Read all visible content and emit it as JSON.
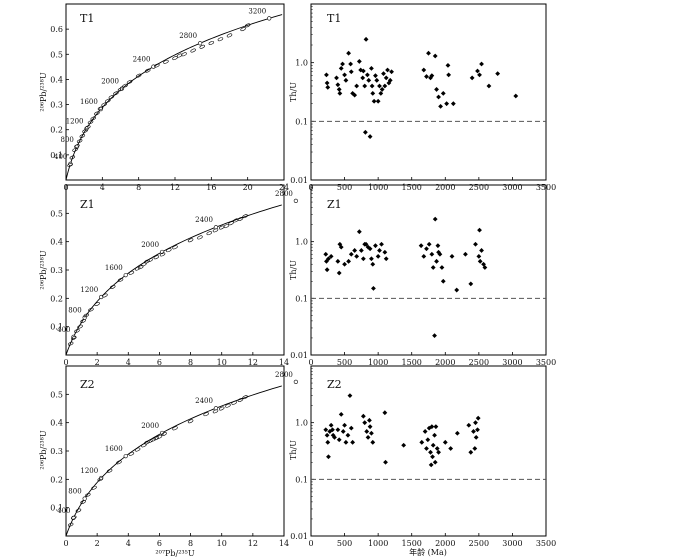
{
  "figure": {
    "concordia_xlabel": "²⁰⁷Pb/²³⁵U",
    "concordia_ylabel": "²⁰⁶Pb/²³⁸U",
    "thu_xlabel": "年龄 (Ma)",
    "thu_ylabel": "Th/U"
  },
  "chart_data": [
    {
      "type": "scatter",
      "role": "concordia",
      "panel_label": "T1",
      "xlim": [
        0,
        24
      ],
      "ylim": [
        0,
        0.7
      ],
      "xticks": [
        0,
        4,
        8,
        12,
        16,
        20,
        24
      ],
      "yticks": [
        0.1,
        0.2,
        0.3,
        0.4,
        0.5,
        0.6
      ],
      "age_labels": [
        "400",
        "800",
        "1200",
        "1600",
        "2000",
        "2400",
        "2800",
        "3200"
      ],
      "age_values": [
        400,
        800,
        1200,
        1600,
        2000,
        2400,
        2800,
        3200
      ],
      "ellipses": [
        [
          0.45,
          0.06
        ],
        [
          0.7,
          0.09
        ],
        [
          1.0,
          0.12
        ],
        [
          1.2,
          0.135
        ],
        [
          1.5,
          0.155
        ],
        [
          1.8,
          0.175
        ],
        [
          2.1,
          0.195
        ],
        [
          2.4,
          0.21
        ],
        [
          2.7,
          0.23
        ],
        [
          3.0,
          0.245
        ],
        [
          3.4,
          0.265
        ],
        [
          3.8,
          0.285
        ],
        [
          4.2,
          0.3
        ],
        [
          4.6,
          0.315
        ],
        [
          5.0,
          0.33
        ],
        [
          5.5,
          0.345
        ],
        [
          6.0,
          0.36
        ],
        [
          6.5,
          0.375
        ],
        [
          7.0,
          0.39
        ],
        [
          8.0,
          0.415
        ],
        [
          9.0,
          0.435
        ],
        [
          10.0,
          0.455
        ],
        [
          11.0,
          0.47
        ],
        [
          12.0,
          0.485
        ],
        [
          12.5,
          0.495
        ],
        [
          13.0,
          0.5
        ],
        [
          14.0,
          0.515
        ],
        [
          15.0,
          0.53
        ],
        [
          16.0,
          0.545
        ],
        [
          17.0,
          0.56
        ],
        [
          18.0,
          0.575
        ],
        [
          19.5,
          0.6
        ],
        [
          20.0,
          0.615
        ]
      ]
    },
    {
      "type": "scatter",
      "role": "thu",
      "panel_label": "T1",
      "xlim": [
        0,
        3500
      ],
      "ylim": [
        0.01,
        10
      ],
      "yscale": "log",
      "xticks": [
        0,
        500,
        1000,
        1500,
        2000,
        2500,
        3000,
        3500
      ],
      "yticks": [
        0.01,
        0.1,
        1.0
      ],
      "ytick_labels": [
        "0.01",
        "0.1",
        "1.0"
      ],
      "reference_line": 0.1,
      "points": [
        [
          230,
          0.62
        ],
        [
          240,
          0.45
        ],
        [
          250,
          0.38
        ],
        [
          380,
          0.55
        ],
        [
          400,
          0.42
        ],
        [
          420,
          0.35
        ],
        [
          430,
          0.3
        ],
        [
          450,
          0.8
        ],
        [
          470,
          0.95
        ],
        [
          500,
          0.62
        ],
        [
          520,
          0.5
        ],
        [
          560,
          1.45
        ],
        [
          590,
          0.95
        ],
        [
          600,
          0.7
        ],
        [
          620,
          0.3
        ],
        [
          650,
          0.28
        ],
        [
          680,
          0.4
        ],
        [
          720,
          1.05
        ],
        [
          740,
          0.75
        ],
        [
          770,
          0.55
        ],
        [
          780,
          0.72
        ],
        [
          800,
          0.4
        ],
        [
          810,
          0.065
        ],
        [
          820,
          2.5
        ],
        [
          840,
          0.62
        ],
        [
          860,
          0.5
        ],
        [
          880,
          0.055
        ],
        [
          900,
          0.8
        ],
        [
          910,
          0.4
        ],
        [
          920,
          0.3
        ],
        [
          940,
          0.22
        ],
        [
          960,
          0.6
        ],
        [
          980,
          0.5
        ],
        [
          1000,
          0.22
        ],
        [
          1020,
          0.4
        ],
        [
          1040,
          0.3
        ],
        [
          1060,
          0.35
        ],
        [
          1080,
          0.65
        ],
        [
          1100,
          0.4
        ],
        [
          1120,
          0.55
        ],
        [
          1140,
          0.75
        ],
        [
          1160,
          0.45
        ],
        [
          1180,
          0.5
        ],
        [
          1200,
          0.7
        ],
        [
          1680,
          0.75
        ],
        [
          1720,
          0.58
        ],
        [
          1750,
          1.45
        ],
        [
          1780,
          0.55
        ],
        [
          1800,
          0.6
        ],
        [
          1850,
          1.3
        ],
        [
          1870,
          0.35
        ],
        [
          1900,
          0.26
        ],
        [
          1930,
          0.18
        ],
        [
          1970,
          0.3
        ],
        [
          2020,
          0.2
        ],
        [
          2040,
          0.9
        ],
        [
          2050,
          0.62
        ],
        [
          2120,
          0.2
        ],
        [
          2400,
          0.55
        ],
        [
          2480,
          0.72
        ],
        [
          2510,
          0.62
        ],
        [
          2540,
          0.95
        ],
        [
          2650,
          0.4
        ],
        [
          2780,
          0.65
        ],
        [
          3050,
          0.27
        ]
      ]
    },
    {
      "type": "scatter",
      "role": "concordia",
      "panel_label": "Z1",
      "xlim": [
        0,
        14
      ],
      "ylim": [
        0,
        0.6
      ],
      "xticks": [
        0,
        2,
        4,
        6,
        8,
        10,
        12,
        14
      ],
      "yticks": [
        0.1,
        0.2,
        0.3,
        0.4,
        0.5
      ],
      "age_labels": [
        "400",
        "800",
        "1200",
        "1600",
        "2000",
        "2400",
        "2800"
      ],
      "age_values": [
        400,
        800,
        1200,
        1600,
        2000,
        2400,
        2800
      ],
      "ellipses": [
        [
          0.3,
          0.04
        ],
        [
          0.5,
          0.06
        ],
        [
          0.7,
          0.085
        ],
        [
          0.9,
          0.1
        ],
        [
          1.1,
          0.12
        ],
        [
          1.3,
          0.14
        ],
        [
          1.6,
          0.16
        ],
        [
          2.0,
          0.18
        ],
        [
          2.5,
          0.21
        ],
        [
          3.0,
          0.24
        ],
        [
          3.5,
          0.265
        ],
        [
          4.2,
          0.29
        ],
        [
          4.6,
          0.305
        ],
        [
          4.8,
          0.31
        ],
        [
          5.0,
          0.32
        ],
        [
          5.2,
          0.33
        ],
        [
          5.4,
          0.335
        ],
        [
          5.8,
          0.345
        ],
        [
          6.2,
          0.355
        ],
        [
          6.6,
          0.37
        ],
        [
          7.0,
          0.38
        ],
        [
          8.0,
          0.405
        ],
        [
          8.6,
          0.415
        ],
        [
          9.2,
          0.43
        ],
        [
          9.6,
          0.44
        ],
        [
          10.0,
          0.45
        ],
        [
          10.3,
          0.455
        ],
        [
          10.6,
          0.465
        ],
        [
          10.9,
          0.475
        ],
        [
          11.2,
          0.48
        ],
        [
          11.5,
          0.49
        ]
      ]
    },
    {
      "type": "scatter",
      "role": "thu",
      "panel_label": "Z1",
      "xlim": [
        0,
        3500
      ],
      "ylim": [
        0.01,
        10
      ],
      "yscale": "log",
      "xticks": [
        0,
        500,
        1000,
        1500,
        2000,
        2500,
        3000,
        3500
      ],
      "yticks": [
        0.01,
        0.1,
        1.0
      ],
      "ytick_labels": [
        "0.01",
        "0.1",
        "1.0"
      ],
      "reference_line": 0.1,
      "points": [
        [
          220,
          0.6
        ],
        [
          230,
          0.45
        ],
        [
          240,
          0.32
        ],
        [
          260,
          0.5
        ],
        [
          300,
          0.55
        ],
        [
          400,
          0.45
        ],
        [
          420,
          0.28
        ],
        [
          430,
          0.9
        ],
        [
          450,
          0.8
        ],
        [
          500,
          0.4
        ],
        [
          560,
          0.45
        ],
        [
          600,
          0.6
        ],
        [
          650,
          0.7
        ],
        [
          680,
          0.55
        ],
        [
          720,
          1.5
        ],
        [
          750,
          0.7
        ],
        [
          780,
          0.5
        ],
        [
          800,
          0.9
        ],
        [
          820,
          0.9
        ],
        [
          850,
          0.8
        ],
        [
          880,
          0.75
        ],
        [
          900,
          0.5
        ],
        [
          920,
          0.4
        ],
        [
          930,
          0.15
        ],
        [
          960,
          0.85
        ],
        [
          1000,
          0.55
        ],
        [
          1020,
          0.7
        ],
        [
          1050,
          0.9
        ],
        [
          1100,
          0.65
        ],
        [
          1120,
          0.5
        ],
        [
          1640,
          0.85
        ],
        [
          1680,
          0.55
        ],
        [
          1720,
          0.75
        ],
        [
          1760,
          0.9
        ],
        [
          1800,
          0.6
        ],
        [
          1820,
          0.35
        ],
        [
          1840,
          0.022
        ],
        [
          1850,
          2.5
        ],
        [
          1870,
          0.45
        ],
        [
          1890,
          0.85
        ],
        [
          1900,
          0.65
        ],
        [
          1920,
          0.6
        ],
        [
          1950,
          0.35
        ],
        [
          1970,
          0.2
        ],
        [
          2100,
          0.55
        ],
        [
          2170,
          0.14
        ],
        [
          2300,
          0.6
        ],
        [
          2380,
          0.18
        ],
        [
          2450,
          0.9
        ],
        [
          2500,
          0.55
        ],
        [
          2510,
          1.6
        ],
        [
          2520,
          0.45
        ],
        [
          2540,
          0.7
        ],
        [
          2570,
          0.4
        ],
        [
          2590,
          0.35
        ]
      ]
    },
    {
      "type": "scatter",
      "role": "concordia",
      "panel_label": "Z2",
      "xlim": [
        0,
        14
      ],
      "ylim": [
        0,
        0.6
      ],
      "xticks": [
        0,
        2,
        4,
        6,
        8,
        10,
        12,
        14
      ],
      "yticks": [
        0.1,
        0.2,
        0.3,
        0.4,
        0.5
      ],
      "age_labels": [
        "400",
        "800",
        "1200",
        "1600",
        "2000",
        "2400",
        "2800"
      ],
      "age_values": [
        400,
        800,
        1200,
        1600,
        2000,
        2400,
        2800
      ],
      "ellipses": [
        [
          0.3,
          0.04
        ],
        [
          0.5,
          0.065
        ],
        [
          0.8,
          0.09
        ],
        [
          1.1,
          0.12
        ],
        [
          1.4,
          0.145
        ],
        [
          1.8,
          0.17
        ],
        [
          2.2,
          0.2
        ],
        [
          2.8,
          0.23
        ],
        [
          3.4,
          0.26
        ],
        [
          4.2,
          0.29
        ],
        [
          4.6,
          0.305
        ],
        [
          5.0,
          0.32
        ],
        [
          5.2,
          0.33
        ],
        [
          5.4,
          0.335
        ],
        [
          5.6,
          0.34
        ],
        [
          5.8,
          0.345
        ],
        [
          6.0,
          0.35
        ],
        [
          6.3,
          0.36
        ],
        [
          7.0,
          0.38
        ],
        [
          8.0,
          0.405
        ],
        [
          9.0,
          0.43
        ],
        [
          9.6,
          0.44
        ],
        [
          10.0,
          0.45
        ],
        [
          10.4,
          0.46
        ],
        [
          10.8,
          0.47
        ],
        [
          11.2,
          0.48
        ],
        [
          11.5,
          0.49
        ]
      ]
    },
    {
      "type": "scatter",
      "role": "thu",
      "panel_label": "Z2",
      "xlim": [
        0,
        3500
      ],
      "ylim": [
        0.01,
        10
      ],
      "yscale": "log",
      "xticks": [
        0,
        500,
        1000,
        1500,
        2000,
        2500,
        3000,
        3500
      ],
      "yticks": [
        0.01,
        0.1,
        1.0
      ],
      "ytick_labels": [
        "0.01",
        "0.1",
        "1.0"
      ],
      "reference_line": 0.1,
      "points": [
        [
          220,
          0.75
        ],
        [
          240,
          0.6
        ],
        [
          250,
          0.45
        ],
        [
          260,
          0.25
        ],
        [
          280,
          0.7
        ],
        [
          300,
          0.9
        ],
        [
          320,
          0.75
        ],
        [
          330,
          0.6
        ],
        [
          350,
          0.55
        ],
        [
          400,
          0.75
        ],
        [
          420,
          0.5
        ],
        [
          450,
          1.4
        ],
        [
          480,
          0.7
        ],
        [
          500,
          0.9
        ],
        [
          520,
          0.45
        ],
        [
          550,
          0.6
        ],
        [
          580,
          3.0
        ],
        [
          600,
          0.8
        ],
        [
          620,
          0.45
        ],
        [
          780,
          1.3
        ],
        [
          800,
          1.0
        ],
        [
          830,
          0.7
        ],
        [
          850,
          0.55
        ],
        [
          870,
          1.1
        ],
        [
          880,
          0.85
        ],
        [
          900,
          0.65
        ],
        [
          920,
          0.45
        ],
        [
          1100,
          1.5
        ],
        [
          1110,
          0.2
        ],
        [
          1380,
          0.4
        ],
        [
          1650,
          0.45
        ],
        [
          1700,
          0.7
        ],
        [
          1720,
          0.35
        ],
        [
          1740,
          0.5
        ],
        [
          1760,
          0.8
        ],
        [
          1780,
          0.3
        ],
        [
          1790,
          0.18
        ],
        [
          1800,
          0.85
        ],
        [
          1810,
          0.25
        ],
        [
          1820,
          0.4
        ],
        [
          1840,
          0.6
        ],
        [
          1850,
          0.2
        ],
        [
          1860,
          0.85
        ],
        [
          1880,
          0.35
        ],
        [
          1900,
          0.3
        ],
        [
          2000,
          0.45
        ],
        [
          2080,
          0.35
        ],
        [
          2180,
          0.65
        ],
        [
          2350,
          0.9
        ],
        [
          2380,
          0.3
        ],
        [
          2420,
          0.7
        ],
        [
          2440,
          0.35
        ],
        [
          2450,
          1.0
        ],
        [
          2460,
          0.55
        ],
        [
          2480,
          0.75
        ],
        [
          2490,
          1.2
        ]
      ]
    }
  ]
}
